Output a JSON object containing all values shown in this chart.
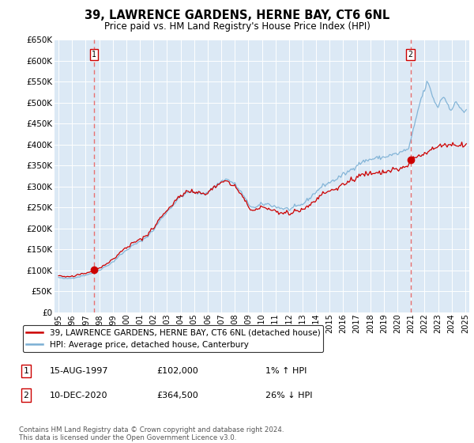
{
  "title": "39, LAWRENCE GARDENS, HERNE BAY, CT6 6NL",
  "subtitle": "Price paid vs. HM Land Registry's House Price Index (HPI)",
  "ylim": [
    0,
    650000
  ],
  "yticks": [
    0,
    50000,
    100000,
    150000,
    200000,
    250000,
    300000,
    350000,
    400000,
    450000,
    500000,
    550000,
    600000,
    650000
  ],
  "xmin": 1994.7,
  "xmax": 2025.3,
  "bg_color": "#dce9f5",
  "grid_color": "#ffffff",
  "red_line_color": "#cc0000",
  "blue_line_color": "#7aafd4",
  "marker_color": "#cc0000",
  "dashed_color": "#e87070",
  "legend_label_red": "39, LAWRENCE GARDENS, HERNE BAY, CT6 6NL (detached house)",
  "legend_label_blue": "HPI: Average price, detached house, Canterbury",
  "point1_x": 1997.62,
  "point1_y": 102000,
  "point1_label": "1",
  "point1_date": "15-AUG-1997",
  "point1_price": "£102,000",
  "point1_hpi": "1% ↑ HPI",
  "point2_x": 2020.96,
  "point2_y": 364500,
  "point2_label": "2",
  "point2_date": "10-DEC-2020",
  "point2_price": "£364,500",
  "point2_hpi": "26% ↓ HPI",
  "copyright": "Contains HM Land Registry data © Crown copyright and database right 2024.\nThis data is licensed under the Open Government Licence v3.0."
}
